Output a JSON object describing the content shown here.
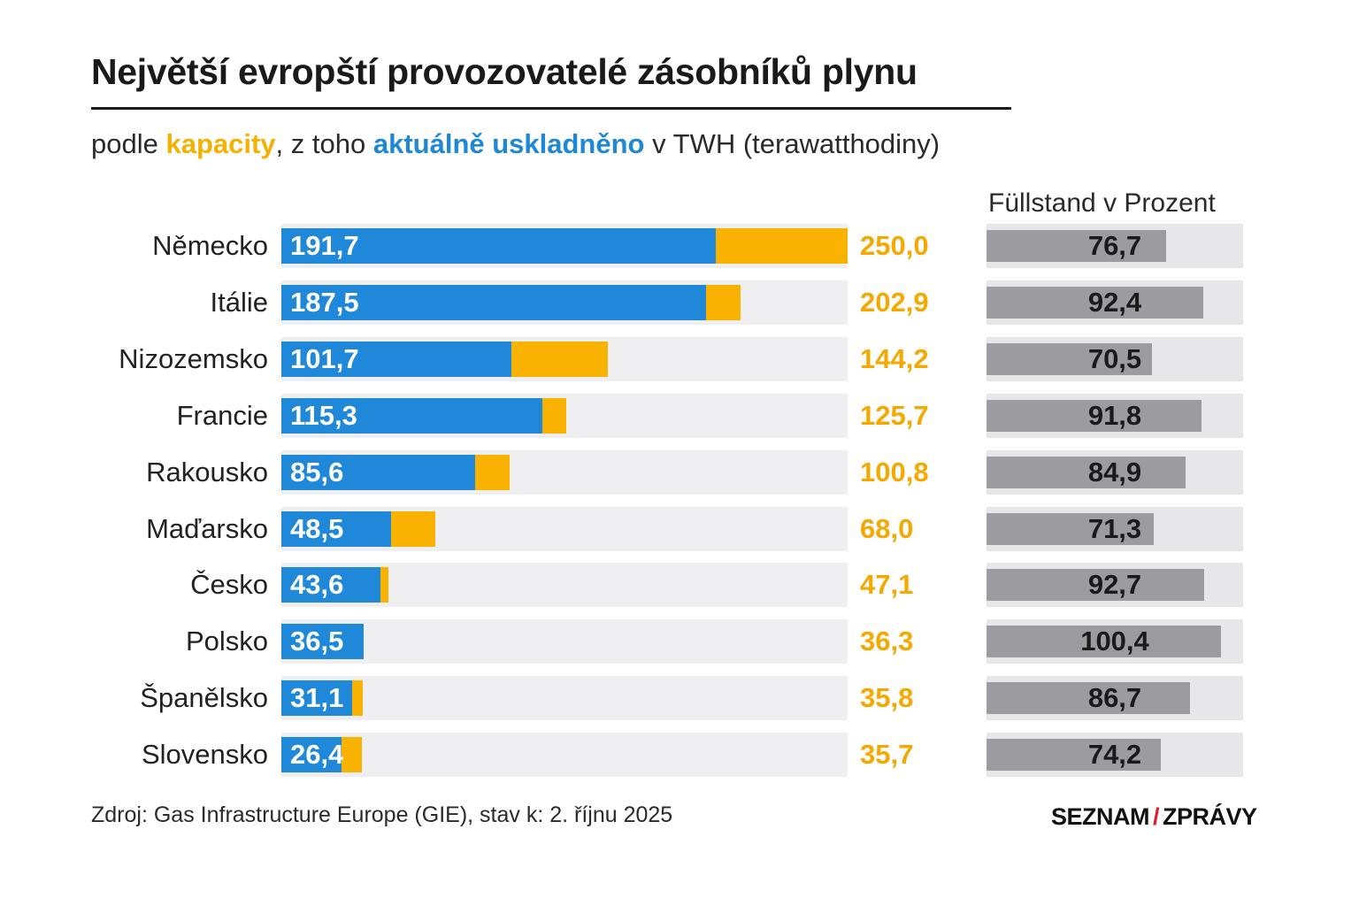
{
  "title": "Největší evropští provozovatelé zásobníků plynu",
  "subtitle": {
    "prefix": "podle ",
    "capacity": "kapacity",
    "middle": ", z toho ",
    "stored": "aktuálně uskladněno",
    "suffix": " v TWH (terawatthodiny)"
  },
  "fill_header": "Füllstand v Prozent",
  "source": "Zdroj: Gas Infrastructure Europe (GIE), stav k: 2. říjnu 2025",
  "logo": {
    "left": "SEZNAM",
    "slash": "/",
    "right": "ZPRÁVY"
  },
  "colors": {
    "capacity": "#f9b200",
    "stored": "#1f88d8",
    "fill": "#9b9ba0",
    "track": "#efeff1"
  },
  "chart_data": {
    "type": "bar",
    "categories": [
      "Německo",
      "Itálie",
      "Nizozemsko",
      "Francie",
      "Rakousko",
      "Maďarsko",
      "Česko",
      "Polsko",
      "Španělsko",
      "Slovensko"
    ],
    "series": [
      {
        "name": "aktuálně uskladněno",
        "values": [
          191.7,
          187.5,
          101.7,
          115.3,
          85.6,
          48.5,
          43.6,
          36.5,
          31.1,
          26.4
        ],
        "labels": [
          "191,7",
          "187,5",
          "101,7",
          "115,3",
          "85,6",
          "48,5",
          "43,6",
          "36,5",
          "31,1",
          "26,4"
        ]
      },
      {
        "name": "kapacity",
        "values": [
          250.0,
          202.9,
          144.2,
          125.7,
          100.8,
          68.0,
          47.1,
          36.3,
          35.8,
          35.7
        ],
        "labels": [
          "250,0",
          "202,9",
          "144,2",
          "125,7",
          "100,8",
          "68,0",
          "47,1",
          "36,3",
          "35,8",
          "35,7"
        ]
      },
      {
        "name": "Füllstand v Prozent",
        "values": [
          76.7,
          92.4,
          70.5,
          91.8,
          84.9,
          71.3,
          92.7,
          100.4,
          86.7,
          74.2
        ],
        "labels": [
          "76,7",
          "92,4",
          "70,5",
          "91,8",
          "84,9",
          "71,3",
          "92,7",
          "100,4",
          "86,7",
          "74,2"
        ]
      }
    ],
    "xlim": [
      0,
      250
    ]
  }
}
